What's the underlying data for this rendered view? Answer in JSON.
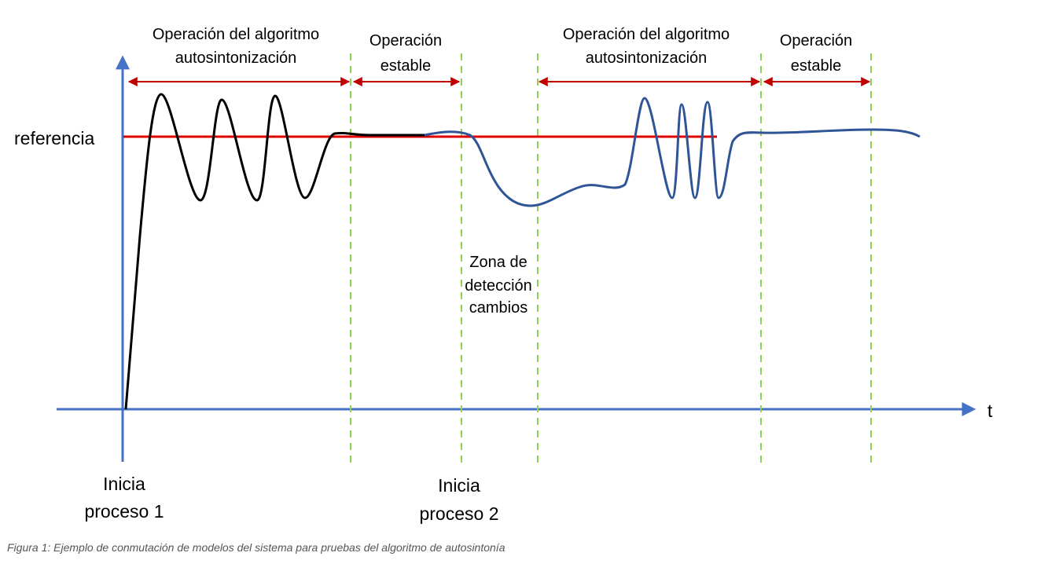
{
  "labels": {
    "reference": "referencia",
    "time_axis": "t",
    "phase1_line1": "Operación del algoritmo",
    "phase1_line2": "autosintonización",
    "phase2_line1": "Operación",
    "phase2_line2": "estable",
    "phase3_line1": "Operación del algoritmo",
    "phase3_line2": "autosintonización",
    "phase4_line1": "Operación",
    "phase4_line2": "estable",
    "zone_line1": "Zona de",
    "zone_line2": "detección",
    "zone_line3": "cambios",
    "start1_line1": "Inicia",
    "start1_line2": "proceso 1",
    "start2_line1": "Inicia",
    "start2_line2": "proceso 2"
  },
  "caption": "Figura 1: Ejemplo de conmutación de modelos del sistema para pruebas del algoritmo de autosintonía",
  "colors": {
    "axis": "#4472c4",
    "reference": "#e00000",
    "arrows": "#c00000",
    "divider": "#92d050",
    "process1": "#000000",
    "process2": "#2f5597"
  }
}
